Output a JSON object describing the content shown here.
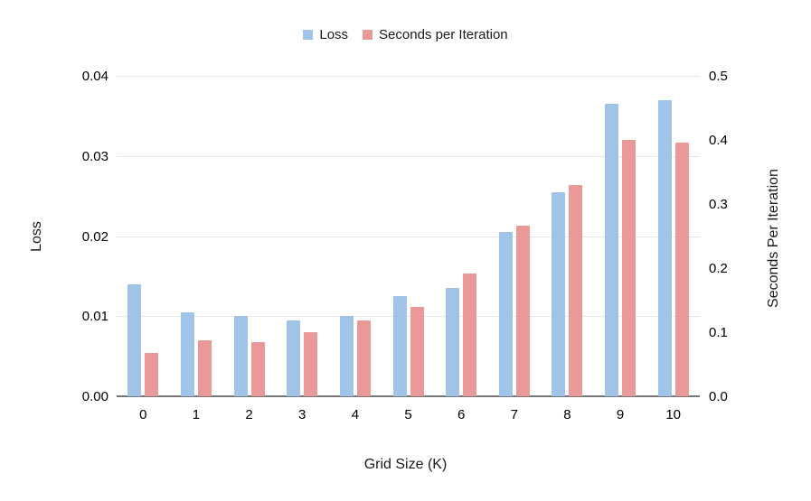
{
  "chart_data": {
    "type": "bar",
    "title": "",
    "categories": [
      "0",
      "1",
      "2",
      "3",
      "4",
      "5",
      "6",
      "7",
      "8",
      "9",
      "10"
    ],
    "series": [
      {
        "name": "Loss",
        "axis": "left",
        "color": "#A0C4E8",
        "values": [
          0.014,
          0.0105,
          0.01,
          0.0095,
          0.01,
          0.0125,
          0.0135,
          0.0205,
          0.0255,
          0.0365,
          0.037
        ]
      },
      {
        "name": "Seconds per Iteration",
        "axis": "right",
        "color": "#EA9999",
        "values": [
          0.068,
          0.088,
          0.085,
          0.1,
          0.118,
          0.14,
          0.192,
          0.266,
          0.33,
          0.4,
          0.396
        ]
      }
    ],
    "xlabel": "Grid Size (K)",
    "left_axis": {
      "label": "Loss",
      "min": 0,
      "max": 0.04,
      "ticks": [
        "0.00",
        "0.01",
        "0.02",
        "0.03",
        "0.04"
      ]
    },
    "right_axis": {
      "label": "Seconds Per Iteration",
      "min": 0,
      "max": 0.5,
      "ticks": [
        "0.0",
        "0.1",
        "0.2",
        "0.3",
        "0.4",
        "0.5"
      ]
    },
    "legend": {
      "position": "top",
      "items": [
        {
          "label": "Loss",
          "color": "#A0C4E8"
        },
        {
          "label": "Seconds per Iteration",
          "color": "#EA9999"
        }
      ]
    },
    "grid": true,
    "colors": {
      "gridline": "#E6E6E6",
      "baseline": "#757575",
      "text": "#000000"
    }
  }
}
